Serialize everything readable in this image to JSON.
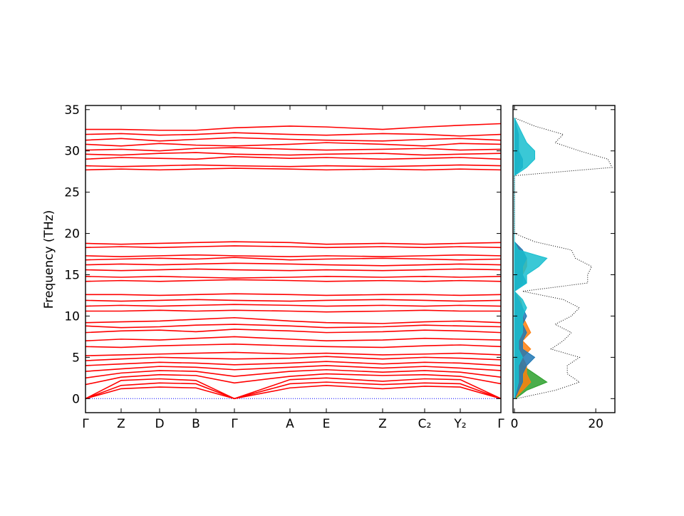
{
  "chart_data": [
    {
      "type": "line",
      "ylabel": "Frequency (THz)",
      "color": "#ff0000",
      "x": [
        0,
        0.5,
        1.04,
        1.55,
        2.09,
        2.87,
        3.38,
        4.17,
        4.76,
        5.26,
        5.83
      ],
      "xlim": [
        0,
        5.83
      ],
      "xticks": [
        {
          "value": 0,
          "label": "Γ"
        },
        {
          "value": 0.5,
          "label": "Z"
        },
        {
          "value": 1.04,
          "label": "D"
        },
        {
          "value": 1.55,
          "label": "B"
        },
        {
          "value": 2.09,
          "label": "Γ"
        },
        {
          "value": 2.87,
          "label": "A"
        },
        {
          "value": 3.38,
          "label": "E"
        },
        {
          "value": 4.17,
          "label": "Z"
        },
        {
          "value": 4.76,
          "label": "C₂"
        },
        {
          "value": 5.26,
          "label": "Y₂"
        },
        {
          "value": 5.83,
          "label": "Γ"
        }
      ],
      "ylim": [
        -1.7,
        35.5
      ],
      "yticks": [
        0,
        5,
        10,
        15,
        20,
        25,
        30,
        35
      ],
      "series": [
        {
          "color": "#0000ff",
          "style": "dotted",
          "values": [
            0,
            0,
            0,
            0,
            0,
            0,
            0,
            0,
            0,
            0,
            0
          ]
        },
        {
          "values": [
            0,
            1.2,
            1.4,
            1.3,
            0,
            1.3,
            1.6,
            1.2,
            1.5,
            1.4,
            0
          ]
        },
        {
          "values": [
            0,
            1.6,
            1.9,
            1.8,
            0,
            1.8,
            2.0,
            1.7,
            1.9,
            1.8,
            0
          ]
        },
        {
          "values": [
            0,
            2.2,
            2.4,
            2.2,
            0,
            2.3,
            2.5,
            2.1,
            2.4,
            2.3,
            0
          ]
        },
        {
          "values": [
            1.7,
            2.6,
            2.9,
            2.8,
            1.9,
            2.7,
            3.0,
            2.8,
            2.9,
            2.7,
            1.8
          ]
        },
        {
          "values": [
            2.5,
            3.1,
            3.4,
            3.3,
            2.7,
            3.3,
            3.5,
            3.2,
            3.4,
            3.2,
            2.6
          ]
        },
        {
          "values": [
            3.3,
            3.6,
            3.9,
            3.8,
            3.5,
            3.8,
            4.0,
            3.7,
            3.9,
            3.7,
            3.4
          ]
        },
        {
          "values": [
            4.0,
            4.2,
            4.4,
            4.3,
            4.1,
            4.3,
            4.5,
            4.2,
            4.4,
            4.3,
            4.0
          ]
        },
        {
          "values": [
            4.6,
            4.8,
            5.0,
            4.9,
            4.8,
            4.9,
            5.1,
            4.8,
            5.0,
            4.9,
            4.7
          ]
        },
        {
          "values": [
            5.2,
            5.3,
            5.4,
            5.5,
            5.6,
            5.4,
            5.5,
            5.3,
            5.4,
            5.5,
            5.3
          ]
        },
        {
          "values": [
            6.3,
            6.2,
            6.4,
            6.5,
            6.6,
            6.4,
            6.3,
            6.2,
            6.4,
            6.5,
            6.3
          ]
        },
        {
          "values": [
            7.0,
            7.2,
            7.1,
            7.3,
            7.5,
            7.2,
            7.0,
            7.1,
            7.3,
            7.2,
            7.1
          ]
        },
        {
          "values": [
            8.0,
            8.2,
            8.3,
            8.1,
            8.4,
            8.2,
            8.0,
            8.1,
            8.3,
            8.2,
            8.0
          ]
        },
        {
          "values": [
            8.8,
            8.6,
            8.7,
            8.9,
            9.0,
            8.8,
            8.6,
            8.7,
            8.9,
            8.8,
            8.7
          ]
        },
        {
          "values": [
            9.2,
            9.3,
            9.4,
            9.6,
            9.8,
            9.4,
            9.2,
            9.1,
            9.3,
            9.4,
            9.2
          ]
        },
        {
          "values": [
            10.6,
            10.6,
            10.7,
            10.6,
            10.7,
            10.6,
            10.5,
            10.6,
            10.7,
            10.6,
            10.6
          ]
        },
        {
          "values": [
            11.2,
            11.3,
            11.2,
            11.3,
            11.4,
            11.3,
            11.2,
            11.3,
            11.2,
            11.3,
            11.2
          ]
        },
        {
          "values": [
            11.9,
            11.8,
            11.9,
            12.0,
            11.9,
            11.8,
            11.9,
            12.0,
            11.9,
            11.8,
            11.9
          ]
        },
        {
          "values": [
            12.6,
            12.6,
            12.5,
            12.6,
            12.7,
            12.6,
            12.5,
            12.6,
            12.6,
            12.5,
            12.6
          ]
        },
        {
          "values": [
            14.2,
            14.3,
            14.2,
            14.3,
            14.4,
            14.3,
            14.2,
            14.3,
            14.2,
            14.3,
            14.2
          ]
        },
        {
          "values": [
            14.8,
            14.7,
            14.8,
            14.7,
            14.6,
            14.7,
            14.8,
            14.7,
            14.8,
            14.7,
            14.8
          ]
        },
        {
          "values": [
            15.6,
            15.5,
            15.6,
            15.7,
            15.6,
            15.5,
            15.6,
            15.5,
            15.6,
            15.7,
            15.6
          ]
        },
        {
          "values": [
            16.2,
            16.3,
            16.2,
            16.3,
            16.4,
            16.3,
            16.2,
            16.1,
            16.2,
            16.3,
            16.2
          ]
        },
        {
          "values": [
            16.8,
            16.9,
            17.0,
            16.9,
            17.1,
            16.8,
            16.9,
            17.0,
            16.9,
            16.8,
            16.9
          ]
        },
        {
          "values": [
            17.3,
            17.2,
            17.3,
            17.4,
            17.3,
            17.2,
            17.3,
            17.2,
            17.3,
            17.4,
            17.3
          ]
        },
        {
          "values": [
            18.3,
            18.4,
            18.3,
            18.4,
            18.5,
            18.4,
            18.3,
            18.4,
            18.3,
            18.4,
            18.3
          ]
        },
        {
          "values": [
            18.8,
            18.7,
            18.8,
            18.9,
            19.0,
            18.9,
            18.7,
            18.8,
            18.7,
            18.8,
            18.9
          ]
        },
        {
          "values": [
            27.7,
            27.8,
            27.7,
            27.8,
            27.9,
            27.8,
            27.7,
            27.8,
            27.7,
            27.8,
            27.7
          ]
        },
        {
          "values": [
            28.2,
            28.1,
            28.2,
            28.3,
            28.2,
            28.1,
            28.2,
            28.1,
            28.2,
            28.3,
            28.2
          ]
        },
        {
          "values": [
            29.0,
            29.2,
            29.1,
            29.0,
            29.3,
            29.1,
            29.2,
            29.0,
            29.1,
            29.2,
            29.0
          ]
        },
        {
          "values": [
            29.6,
            29.5,
            29.7,
            29.8,
            29.6,
            29.5,
            29.6,
            29.7,
            29.5,
            29.6,
            29.7
          ]
        },
        {
          "values": [
            30.1,
            30.2,
            30.0,
            30.3,
            30.4,
            30.2,
            30.1,
            30.2,
            30.3,
            30.1,
            30.2
          ]
        },
        {
          "values": [
            30.8,
            30.6,
            30.9,
            30.7,
            30.6,
            30.8,
            31.0,
            30.8,
            30.6,
            30.9,
            30.8
          ]
        },
        {
          "values": [
            31.3,
            31.5,
            31.2,
            31.4,
            31.6,
            31.4,
            31.3,
            31.2,
            31.4,
            31.5,
            31.3
          ]
        },
        {
          "values": [
            32.0,
            32.1,
            31.9,
            32.0,
            32.2,
            32.0,
            31.9,
            32.1,
            32.0,
            31.8,
            32.0
          ]
        },
        {
          "values": [
            32.6,
            32.6,
            32.5,
            32.5,
            32.8,
            33.0,
            32.9,
            32.6,
            32.9,
            33.1,
            33.3
          ]
        }
      ]
    },
    {
      "type": "dos",
      "xlim": [
        -0.35,
        24.7
      ],
      "xticks": [
        0,
        20
      ],
      "ylim": [
        -1.7,
        35.5
      ],
      "yticks": [
        0,
        5,
        10,
        15,
        20,
        25,
        30,
        35
      ],
      "frequencies": [
        0,
        1,
        2,
        3,
        4,
        5,
        6,
        7,
        8,
        9,
        10,
        11,
        12,
        13,
        14,
        15,
        16,
        17,
        18,
        19,
        20,
        21,
        22,
        23,
        24,
        25,
        26,
        27,
        28,
        29,
        30,
        31,
        32,
        33,
        34
      ],
      "series": [
        {
          "color": "#2ca02c",
          "fill": true,
          "values": [
            0.3,
            3,
            8,
            5,
            2,
            1,
            0.5,
            1,
            1.5,
            1,
            0.5,
            0.5,
            0.3,
            0,
            0.5,
            0.5,
            1,
            1,
            0.5,
            0,
            0,
            0,
            0,
            0,
            0,
            0,
            0,
            0,
            0.5,
            0.5,
            0.5,
            0.5,
            0.5,
            0,
            0
          ]
        },
        {
          "color": "#ff7f0e",
          "fill": true,
          "values": [
            0.1,
            2,
            4,
            3,
            3,
            2,
            4,
            2,
            4,
            3,
            2,
            2,
            1.5,
            0,
            2,
            2,
            3,
            3,
            1.5,
            0,
            0,
            0,
            0,
            0,
            0,
            0,
            0,
            0,
            1,
            1.5,
            1,
            1,
            1,
            0.5,
            0
          ]
        },
        {
          "color": "#1f77b4",
          "fill": true,
          "values": [
            0.1,
            1,
            2,
            2,
            3,
            5,
            2,
            2,
            3,
            2,
            3,
            2,
            1,
            0,
            3,
            2,
            2,
            3,
            2,
            0,
            0,
            0,
            0,
            0,
            0,
            0,
            0,
            0,
            2,
            2,
            1,
            1,
            1,
            0.5,
            0
          ]
        },
        {
          "color": "#17becf",
          "fill": true,
          "values": [
            0,
            0.5,
            1,
            1,
            1,
            2,
            1,
            1,
            2,
            2,
            2,
            3,
            2,
            0,
            3,
            3,
            6,
            8,
            1,
            0,
            0,
            0,
            0,
            0,
            0,
            0,
            0,
            0,
            3,
            5,
            5,
            3,
            2,
            1,
            0
          ]
        },
        {
          "color": "#000000",
          "style": "dotted",
          "values": [
            0.5,
            10,
            16,
            13,
            13,
            16,
            9,
            12,
            14,
            10,
            14,
            16,
            12,
            2,
            18,
            18,
            19,
            15,
            14,
            5,
            0,
            0,
            0,
            0,
            0,
            0,
            0,
            0,
            24,
            23,
            16,
            10,
            12,
            5,
            0
          ]
        }
      ]
    }
  ]
}
